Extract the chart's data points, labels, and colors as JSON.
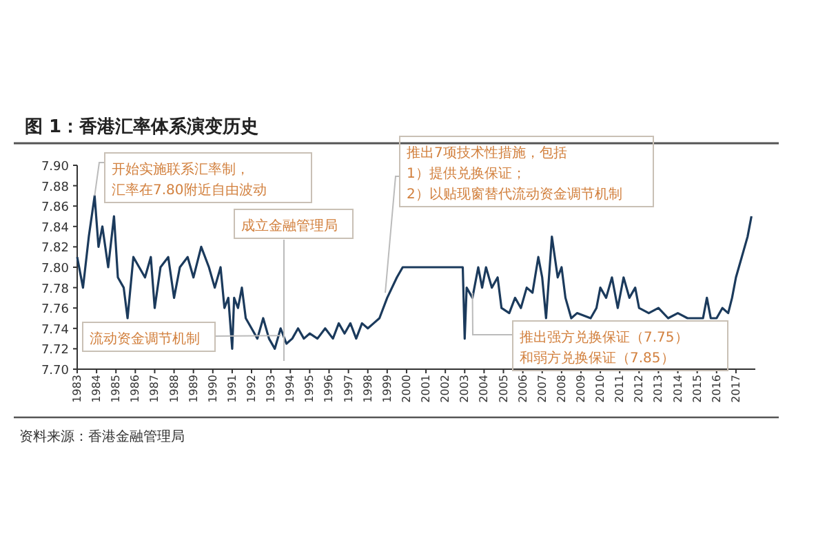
{
  "chart_data": {
    "type": "line",
    "title": "图 1：香港汇率体系演变历史",
    "annotations": [
      {
        "text": "开始实施联系汇率制，汇率在7.80附近自由波动",
        "x": 1983.9,
        "y": 7.87
      },
      "成立金融管理局",
      {
        "text": "推出7项技术性措施，包括1）提供兑换保证；2）以贴现窗替代流动资金调节机制",
        "x": 1998.9,
        "y": 7.775
      },
      {
        "text": "流动资金调节机制",
        "x": 1993.5,
        "y": 7.733
      },
      {
        "text": "推出强方兑换保证（7.75）和弱方兑换保证（7.85）",
        "x": 2003.4,
        "y": 7.775
      },
      "资料来源：香港金融管理局"
    ],
    "series": [
      {
        "color": "#1b3a5c",
        "x": [
          1983.0,
          1983.3,
          1983.6,
          1983.9,
          1984.1,
          1984.3,
          1984.6,
          1984.9,
          1985.1,
          1985.4,
          1985.6,
          1985.9,
          1986.2,
          1986.5,
          1986.8,
          1987.0,
          1987.3,
          1987.7,
          1988.0,
          1988.3,
          1988.7,
          1989.0,
          1989.4,
          1989.8,
          1990.1,
          1990.4,
          1990.6,
          1990.8,
          1991.0,
          1991.1,
          1991.3,
          1991.5,
          1991.7,
          1992.0,
          1992.3,
          1992.6,
          1992.9,
          1993.2,
          1993.5,
          1993.8,
          1994.1,
          1994.4,
          1994.7,
          1995.0,
          1995.4,
          1995.8,
          1996.2,
          1996.5,
          1996.8,
          1997.1,
          1997.4,
          1997.7,
          1998.0,
          1998.3,
          1998.6,
          1999.0,
          1999.5,
          1999.8,
          2000.5,
          2001.5,
          2002.5,
          2002.9,
          2003.0,
          2003.1,
          2003.4,
          2003.7,
          2003.9,
          2004.1,
          2004.4,
          2004.7,
          2004.9,
          2005.3,
          2005.6,
          2005.9,
          2006.2,
          2006.5,
          2006.8,
          2007.0,
          2007.2,
          2007.5,
          2007.8,
          2008.0,
          2008.2,
          2008.5,
          2008.8,
          2009.5,
          2009.8,
          2010.0,
          2010.3,
          2010.6,
          2010.9,
          2011.2,
          2011.5,
          2011.8,
          2012.0,
          2012.5,
          2013.0,
          2013.5,
          2014.0,
          2014.5,
          2015.0,
          2015.3,
          2015.5,
          2015.7,
          2016.0,
          2016.3,
          2016.6,
          2016.8,
          2017.0,
          2017.3,
          2017.6,
          2017.8
        ],
        "values": [
          7.81,
          7.78,
          7.83,
          7.87,
          7.82,
          7.84,
          7.8,
          7.85,
          7.79,
          7.78,
          7.75,
          7.81,
          7.8,
          7.79,
          7.81,
          7.76,
          7.8,
          7.81,
          7.77,
          7.8,
          7.81,
          7.79,
          7.82,
          7.8,
          7.78,
          7.8,
          7.76,
          7.77,
          7.72,
          7.77,
          7.76,
          7.78,
          7.75,
          7.74,
          7.73,
          7.75,
          7.73,
          7.72,
          7.74,
          7.725,
          7.73,
          7.74,
          7.73,
          7.735,
          7.73,
          7.74,
          7.73,
          7.745,
          7.735,
          7.745,
          7.73,
          7.745,
          7.74,
          7.745,
          7.75,
          7.77,
          7.79,
          7.8,
          7.8,
          7.8,
          7.8,
          7.8,
          7.73,
          7.78,
          7.77,
          7.8,
          7.78,
          7.8,
          7.78,
          7.79,
          7.76,
          7.755,
          7.77,
          7.76,
          7.78,
          7.775,
          7.81,
          7.79,
          7.75,
          7.83,
          7.79,
          7.8,
          7.77,
          7.75,
          7.755,
          7.75,
          7.76,
          7.78,
          7.77,
          7.79,
          7.76,
          7.79,
          7.77,
          7.78,
          7.76,
          7.755,
          7.76,
          7.75,
          7.755,
          7.75,
          7.75,
          7.75,
          7.77,
          7.75,
          7.75,
          7.76,
          7.755,
          7.77,
          7.79,
          7.81,
          7.83,
          7.85
        ]
      }
    ],
    "xlim": [
      1983,
      2018
    ],
    "xticks": [
      1983,
      1984,
      1985,
      1986,
      1987,
      1988,
      1989,
      1990,
      1991,
      1992,
      1993,
      1994,
      1995,
      1996,
      1997,
      1998,
      1999,
      2000,
      2001,
      2002,
      2003,
      2004,
      2005,
      2006,
      2007,
      2008,
      2009,
      2010,
      2011,
      2012,
      2013,
      2014,
      2015,
      2016,
      2017
    ],
    "ylim": [
      7.7,
      7.9
    ],
    "yticks": [
      {
        "value": 7.7,
        "label": "7.70"
      },
      {
        "value": 7.72,
        "label": "7.72"
      },
      {
        "value": 7.74,
        "label": "7.74"
      },
      {
        "value": 7.76,
        "label": "7.76"
      },
      {
        "value": 7.78,
        "label": "7.78"
      },
      {
        "value": 7.8,
        "label": "7.80"
      },
      {
        "value": 7.82,
        "label": "7.82"
      },
      {
        "value": 7.84,
        "label": "7.84"
      },
      {
        "value": 7.86,
        "label": "7.86"
      },
      {
        "value": 7.88,
        "label": "7.88"
      },
      {
        "value": 7.9,
        "label": "7.90"
      }
    ],
    "grid": false,
    "line_style": "solid",
    "marker": "none"
  }
}
